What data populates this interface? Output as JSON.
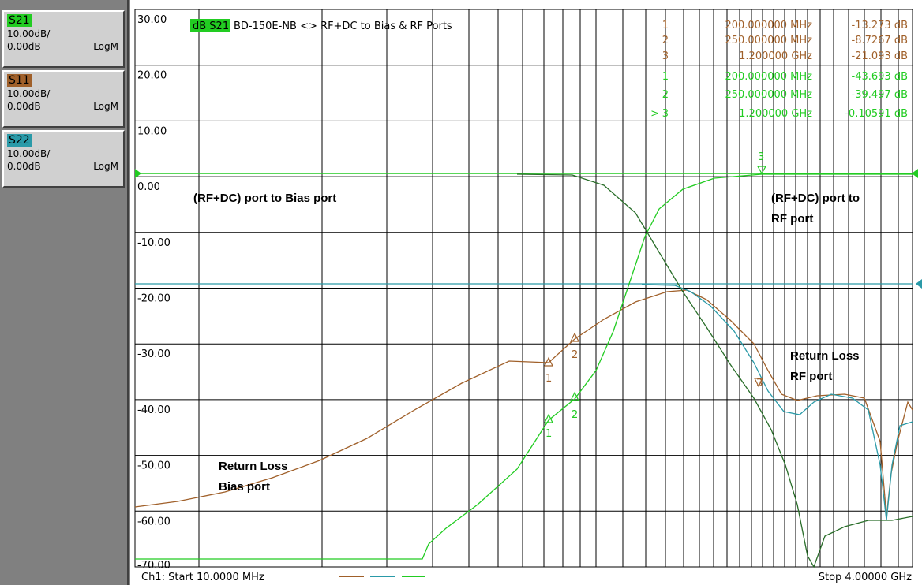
{
  "traces": [
    {
      "name": "S21",
      "scale": "10.00dB/",
      "ref": "0.00dB",
      "format": "LogM",
      "color": "#22cc22"
    },
    {
      "name": "S11",
      "scale": "10.00dB/",
      "ref": "0.00dB",
      "format": "LogM",
      "color": "#a0602a"
    },
    {
      "name": "S22",
      "scale": "10.00dB/",
      "ref": "0.00dB",
      "format": "LogM",
      "color": "#2a9aa8"
    }
  ],
  "header": {
    "active_trace_label": "dB S21",
    "title": "BD-150E-NB <> RF+DC to Bias & RF Ports"
  },
  "y_labels": [
    "30.00",
    "20.00",
    "10.00",
    "0.00",
    "-10.00",
    "-20.00",
    "-30.00",
    "-40.00",
    "-50.00",
    "-60.00",
    "-70.00"
  ],
  "marker_table": {
    "brown": [
      {
        "num": "1",
        "freq": "200.000000 MHz",
        "value": "-13.273 dB"
      },
      {
        "num": "2",
        "freq": "250.000000 MHz",
        "value": "-8.7267 dB"
      },
      {
        "num": "3",
        "freq": "1.200000 GHz",
        "value": "-21.093 dB"
      }
    ],
    "green": [
      {
        "num": "1",
        "freq": "200.000000 MHz",
        "value": "-43.693 dB"
      },
      {
        "num": "2",
        "freq": "250.000000 MHz",
        "value": "-39.497 dB"
      },
      {
        "num": "3",
        "freq": "1.200000 GHz",
        "value": "-0.10591 dB",
        "active_prefix": ">"
      }
    ]
  },
  "annotations": {
    "rf_dc_to_bias": "(RF+DC) port to Bias port",
    "rf_dc_to_rf_line1": "(RF+DC) port to",
    "rf_dc_to_rf_line2": "RF port",
    "return_loss_rf_line1": "Return Loss",
    "return_loss_rf_line2": "RF port",
    "return_loss_bias_line1": "Return Loss",
    "return_loss_bias_line2": "Bias port"
  },
  "footer": {
    "start": "Ch1: Start  10.0000 MHz",
    "stop": "Stop  4.00000 GHz"
  },
  "plot_markers": {
    "brown": [
      "1",
      "2",
      "3"
    ],
    "green": [
      "1",
      "2",
      "3"
    ]
  },
  "colors": {
    "s21_green": "#22cc22",
    "s11_brown": "#a0602a",
    "s22_teal": "#2a9aa8",
    "dark_green": "#2a6e2a",
    "grid": "#000000"
  }
}
